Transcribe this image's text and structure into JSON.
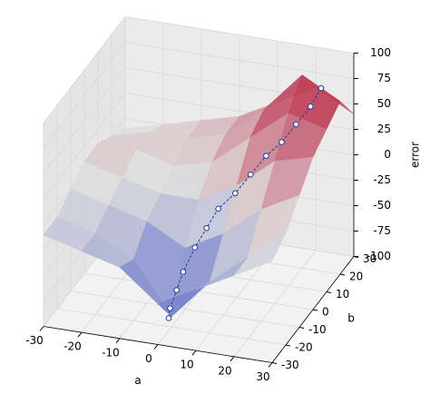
{
  "chart_data": {
    "type": "surface",
    "xlabel": "a",
    "ylabel": "b",
    "zlabel": "error",
    "xlim": [
      -30,
      30
    ],
    "ylim": [
      -30,
      30
    ],
    "zlim": [
      -100,
      100
    ],
    "xticks": [
      -30,
      -20,
      -10,
      0,
      10,
      20,
      30
    ],
    "yticks": [
      -30,
      -20,
      -10,
      0,
      10,
      20,
      30
    ],
    "zticks": [
      -100,
      -75,
      -50,
      -25,
      0,
      25,
      50,
      75,
      100
    ],
    "colormap": [
      "#3b4cc0",
      "#dddddd",
      "#b40426"
    ],
    "grid_a": [
      -30,
      -20,
      -10,
      0,
      10,
      20,
      30
    ],
    "grid_b": [
      -30,
      -20,
      -10,
      0,
      10,
      20,
      30
    ],
    "z": [
      [
        -10,
        -20,
        -30,
        -60,
        -40,
        -20,
        0
      ],
      [
        -10,
        -20,
        -40,
        -90,
        -50,
        -20,
        10
      ],
      [
        0,
        -10,
        -20,
        -40,
        -20,
        10,
        30
      ],
      [
        10,
        0,
        -10,
        -10,
        10,
        40,
        50
      ],
      [
        10,
        10,
        0,
        10,
        40,
        70,
        60
      ],
      [
        0,
        10,
        10,
        20,
        50,
        90,
        70
      ],
      [
        -10,
        0,
        10,
        20,
        40,
        60,
        40
      ]
    ],
    "path": {
      "color": "#1f3d99",
      "a": [
        25,
        24,
        22,
        20,
        17,
        14,
        11,
        8,
        6,
        4,
        2,
        1,
        0,
        0
      ],
      "b": [
        20,
        15,
        10,
        5,
        2,
        -1,
        -4,
        -8,
        -11,
        -14,
        -17,
        -19,
        -21,
        -22
      ],
      "z": [
        80,
        70,
        60,
        50,
        40,
        25,
        10,
        0,
        -15,
        -30,
        -50,
        -65,
        -80,
        -88
      ]
    }
  }
}
